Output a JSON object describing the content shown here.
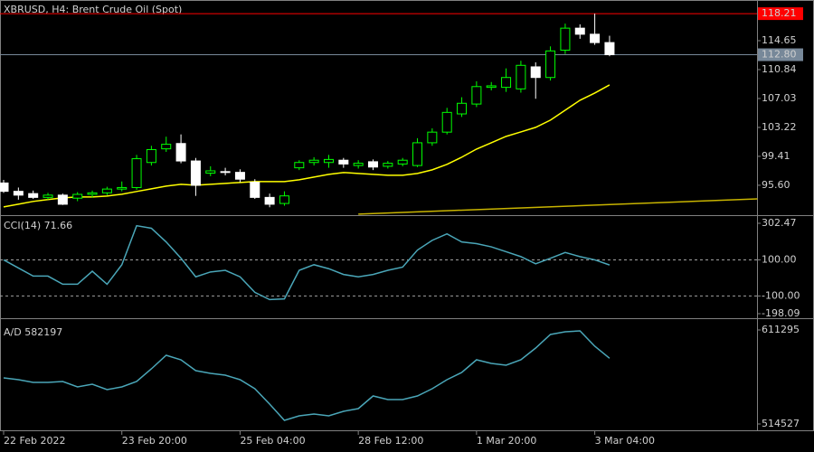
{
  "chart_data": [
    {
      "type": "candlestick",
      "title": "XBRUSD, H4:  Brent Crude Oil (Spot)",
      "categories": [
        "22 Feb 2022",
        null,
        null,
        null,
        null,
        null,
        null,
        null,
        "23 Feb 20:00",
        null,
        null,
        null,
        null,
        null,
        null,
        null,
        "25 Feb 04:00",
        null,
        null,
        null,
        null,
        null,
        null,
        null,
        "28 Feb 12:00",
        null,
        null,
        null,
        null,
        null,
        null,
        null,
        "1 Mar 20:00",
        null,
        null,
        null,
        null,
        null,
        null,
        null,
        "3 Mar 04:00",
        null
      ],
      "open": [
        95.9,
        94.8,
        94.5,
        94.0,
        94.3,
        93.9,
        94.4,
        94.6,
        95.1,
        95.3,
        98.6,
        100.4,
        101.1,
        98.8,
        97.2,
        97.4,
        97.3,
        96.0,
        94.0,
        93.2,
        97.9,
        98.6,
        98.6,
        98.9,
        98.2,
        98.7,
        98.1,
        98.4,
        98.2,
        101.2,
        102.6,
        105.0,
        106.3,
        108.5,
        108.5,
        108.3,
        111.2,
        109.8,
        113.4,
        116.3,
        115.5,
        114.4
      ],
      "high": [
        96.3,
        95.3,
        94.9,
        94.6,
        94.5,
        94.7,
        94.9,
        95.4,
        96.1,
        99.6,
        100.8,
        102.0,
        102.3,
        99.2,
        98.1,
        97.9,
        97.7,
        96.4,
        94.5,
        94.8,
        98.9,
        99.3,
        99.6,
        99.2,
        98.9,
        99.0,
        98.8,
        99.2,
        101.8,
        103.1,
        105.8,
        107.2,
        109.3,
        109.2,
        111.0,
        112.0,
        111.8,
        113.9,
        116.9,
        116.8,
        118.21,
        115.3
      ],
      "low": [
        94.6,
        93.7,
        93.8,
        93.7,
        93.0,
        93.5,
        94.0,
        94.3,
        94.8,
        95.0,
        98.2,
        100.0,
        98.5,
        94.2,
        96.8,
        96.9,
        96.0,
        93.8,
        92.7,
        92.9,
        97.6,
        98.2,
        97.9,
        97.9,
        97.8,
        97.6,
        97.8,
        98.1,
        98.0,
        100.8,
        102.3,
        104.6,
        105.9,
        108.1,
        107.9,
        107.8,
        107.0,
        109.4,
        112.9,
        114.9,
        114.1,
        112.6
      ],
      "close": [
        94.8,
        94.3,
        94.0,
        94.3,
        93.1,
        94.4,
        94.6,
        95.1,
        95.3,
        99.1,
        100.3,
        101.0,
        98.8,
        95.6,
        97.5,
        97.3,
        96.4,
        94.0,
        93.1,
        94.2,
        98.6,
        98.9,
        99.0,
        98.4,
        98.5,
        98.0,
        98.5,
        98.9,
        101.2,
        102.6,
        105.2,
        106.4,
        108.6,
        108.7,
        109.8,
        111.4,
        109.8,
        113.3,
        116.3,
        115.5,
        114.4,
        112.8
      ],
      "bull_color": "#00ff00",
      "bear_color": "#ffffff",
      "series": [
        {
          "color": "#ffff00",
          "values": [
            92.75,
            93.11,
            93.47,
            93.71,
            93.94,
            94.06,
            94.06,
            94.18,
            94.42,
            94.78,
            95.13,
            95.49,
            95.73,
            95.61,
            95.73,
            95.85,
            95.97,
            96.09,
            96.09,
            96.09,
            96.32,
            96.68,
            97.04,
            97.28,
            97.16,
            97.04,
            96.92,
            96.92,
            97.16,
            97.63,
            98.35,
            99.3,
            100.37,
            101.2,
            102.04,
            102.63,
            103.23,
            104.18,
            105.49,
            106.8,
            107.75,
            108.82
          ]
        },
        {
          "color": "#c8b400",
          "x": [
            24,
            51
          ],
          "values": [
            91.8,
            93.8
          ]
        }
      ],
      "price_lines": [
        {
          "value": 118.21,
          "color": "#ff0000"
        },
        {
          "value": 112.8,
          "label": "112.80",
          "color": "#778899"
        }
      ],
      "ylim": [
        91.78,
        120.01
      ],
      "yticks": [
        {
          "value": 95.6,
          "label": "95.60"
        },
        99.41,
        103.22,
        107.03,
        110.84,
        114.65
      ]
    },
    {
      "type": "line",
      "title": "CCI(14) 71.66",
      "color": "#4aa6b8",
      "values": [
        100,
        55,
        10,
        10,
        -35,
        -35,
        37,
        -35,
        73,
        289,
        275,
        199,
        109,
        6,
        33,
        42,
        6,
        -80,
        -120,
        -116,
        42,
        73,
        51,
        19,
        6,
        19,
        42,
        60,
        154,
        208,
        244,
        199,
        190,
        172,
        145,
        118,
        78,
        109,
        141,
        118,
        100,
        71.66
      ],
      "ylim": [
        -198.09,
        302.47
      ],
      "yticks": [
        302.47,
        {
          "value": 100,
          "label": "100.00"
        },
        {
          "value": -100,
          "label": "-100.00"
        },
        {
          "value": -198.09,
          "label": "-198.09"
        }
      ],
      "dashed_levels": [
        {
          "value": 100,
          "label": "100.00"
        },
        {
          "value": -100,
          "label": "-100.00"
        }
      ]
    },
    {
      "type": "line",
      "title": "A/D 582197",
      "color": "#4aa6b8",
      "values": [
        561983,
        560122,
        557330,
        557330,
        558261,
        552678,
        555469,
        549886,
        552678,
        558261,
        571288,
        585245,
        580593,
        569427,
        566635,
        564774,
        560122,
        550817,
        534998,
        518249,
        522902,
        524763,
        522902,
        527554,
        530346,
        543373,
        539651,
        539651,
        543373,
        550817,
        560122,
        567566,
        580593,
        576871,
        575010,
        580593,
        592689,
        606647,
        609438,
        610369,
        594550,
        582197
      ],
      "ylim": [
        514527,
        611295
      ],
      "yticks": [
        611295,
        514527
      ]
    }
  ]
}
